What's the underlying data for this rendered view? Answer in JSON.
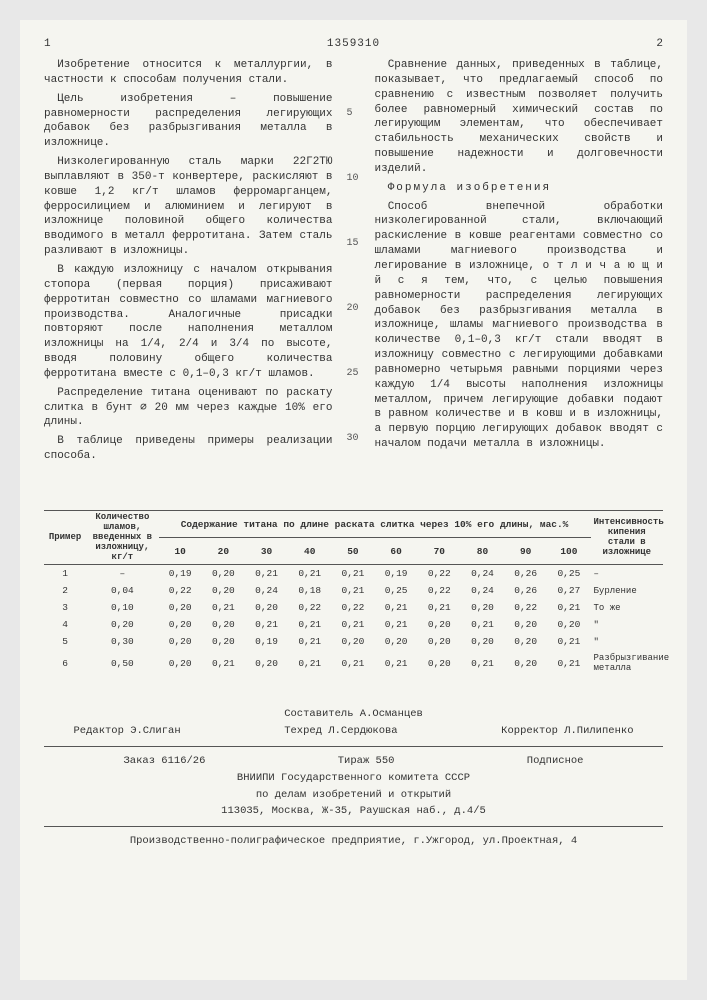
{
  "pageLeft": "1",
  "pageRight": "2",
  "docnum": "1359310",
  "left": {
    "p1": "Изобретение относится к металлургии, в частности к способам получения стали.",
    "p2": "Цель изобретения – повышение равномерности распределения легирующих добавок без разбрызгивания металла в изложнице.",
    "p3": "Низколегированную сталь марки 22Г2ТЮ выплавляют в 350-т конвертере, раскисляют в ковше 1,2 кг/т шламов ферромарганцем, ферросилицием и алюминием и легируют в изложнице половиной общего количества вводимого в металл ферротитана. Затем сталь разливают в изложницы.",
    "p4": "В каждую изложницу с началом открывания стопора (первая порция) присаживают ферротитан совместно со шламами магниевого производства. Аналогичные присадки повторяют после наполнения металлом изложницы на 1/4, 2/4 и 3/4 по высоте, вводя половину общего количества ферротитана вместе с 0,1–0,3 кг/т шламов.",
    "p5": "Распределение титана оценивают по раскату слитка в бунт ⌀ 20 мм через каждые 10% его длины.",
    "p6": "В таблице приведены примеры реализации способа."
  },
  "right": {
    "p1": "Сравнение данных, приведенных в таблице, показывает, что предлагаемый способ по сравнению с известным позволяет получить более равномерный химический состав по легирующим элементам, что обеспечивает стабильность механических свойств и повышение надежности и долговечности изделий.",
    "formula_title": "Формула изобретения",
    "p2": "Способ внепечной обработки низколегированной стали, включающий раскисление в ковше реагентами совместно со шламами магниевого производства и легирование в изложнице, о т л и ч а ю щ и й с я  тем, что, с целью повышения равномерности распределения легирующих добавок без разбрызгивания металла в изложнице, шламы магниевого производства в количестве 0,1–0,3 кг/т стали вводят в изложницу совместно с легирующими добавками равномерно четырьмя равными порциями через каждую 1/4 высоты наполнения изложницы металлом, причем легирующие добавки подают в равном количестве и в ковш и в изложницы, а первую порцию легирующих добавок вводят с началом подачи металла в изложницы."
  },
  "lineNums": [
    "5",
    "10",
    "15",
    "20",
    "25",
    "30"
  ],
  "table": {
    "head1_col1": "Пример",
    "head1_col2": "Количество шламов, введенных в изложницу, кг/т",
    "head1_col3": "Содержание титана по длине раската слитка через 10% его длины, мас.%",
    "head1_col4": "Интенсивность кипения стали в изложнице",
    "lenCols": [
      "10",
      "20",
      "30",
      "40",
      "50",
      "60",
      "70",
      "80",
      "90",
      "100"
    ],
    "rows": [
      {
        "n": "1",
        "slag": "–",
        "v": [
          "0,19",
          "0,20",
          "0,21",
          "0,21",
          "0,21",
          "0,19",
          "0,22",
          "0,24",
          "0,26",
          "0,25"
        ],
        "int": "–"
      },
      {
        "n": "2",
        "slag": "0,04",
        "v": [
          "0,22",
          "0,20",
          "0,24",
          "0,18",
          "0,21",
          "0,25",
          "0,22",
          "0,24",
          "0,26",
          "0,27"
        ],
        "int": "Бурление"
      },
      {
        "n": "3",
        "slag": "0,10",
        "v": [
          "0,20",
          "0,21",
          "0,20",
          "0,22",
          "0,22",
          "0,21",
          "0,21",
          "0,20",
          "0,22",
          "0,21"
        ],
        "int": "То же"
      },
      {
        "n": "4",
        "slag": "0,20",
        "v": [
          "0,20",
          "0,20",
          "0,21",
          "0,21",
          "0,21",
          "0,21",
          "0,20",
          "0,21",
          "0,20",
          "0,20"
        ],
        "int": "\""
      },
      {
        "n": "5",
        "slag": "0,30",
        "v": [
          "0,20",
          "0,20",
          "0,19",
          "0,21",
          "0,20",
          "0,20",
          "0,20",
          "0,20",
          "0,20",
          "0,21"
        ],
        "int": "\""
      },
      {
        "n": "6",
        "slag": "0,50",
        "v": [
          "0,20",
          "0,21",
          "0,20",
          "0,21",
          "0,21",
          "0,21",
          "0,20",
          "0,21",
          "0,20",
          "0,21"
        ],
        "int": "Разбрызгивание металла"
      }
    ]
  },
  "footer": {
    "author": "Составитель А.Османцев",
    "editor": "Редактор Э.Слиган",
    "tech": "Техред Л.Сердюкова",
    "corr": "Корректор Л.Пилипенко",
    "order": "Заказ 6116/26",
    "tirazh": "Тираж 550",
    "pod": "Подписное",
    "org1": "ВНИИПИ Государственного комитета СССР",
    "org2": "по делам изобретений и открытий",
    "addr": "113035, Москва, Ж-35, Раушская наб., д.4/5",
    "print": "Производственно-полиграфическое предприятие, г.Ужгород, ул.Проектная, 4"
  }
}
